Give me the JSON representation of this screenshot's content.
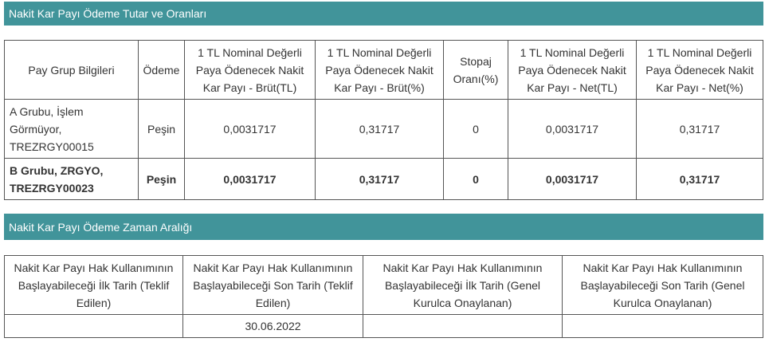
{
  "section1": {
    "title": "Nakit Kar Payı Ödeme Tutar ve Oranları",
    "headers": [
      "Pay Grup Bilgileri",
      "Ödeme",
      "1 TL Nominal Değerli Paya Ödenecek Nakit Kar Payı - Brüt(TL)",
      "1 TL Nominal Değerli Paya Ödenecek Nakit Kar Payı - Brüt(%)",
      "Stopaj Oranı(%)",
      "1 TL Nominal Değerli Paya Ödenecek Nakit Kar Payı - Net(TL)",
      "1 TL Nominal Değerli Paya Ödenecek Nakit Kar Payı - Net(%)"
    ],
    "rows": [
      [
        "A Grubu, İşlem Görmüyor, TREZRGY00015",
        "Peşin",
        "0,0031717",
        "0,31717",
        "0",
        "0,0031717",
        "0,31717"
      ],
      [
        "B Grubu, ZRGYO, TREZRGY00023",
        "Peşin",
        "0,0031717",
        "0,31717",
        "0",
        "0,0031717",
        "0,31717"
      ]
    ]
  },
  "section2": {
    "title": "Nakit Kar Payı Ödeme Zaman Aralığı",
    "headers": [
      "Nakit Kar Payı Hak Kullanımının Başlayabileceği İlk Tarih (Teklif Edilen)",
      "Nakit Kar Payı Hak Kullanımının Başlayabileceği Son Tarih (Teklif Edilen)",
      "Nakit Kar Payı Hak Kullanımının Başlayabileceği İlk Tarih (Genel Kurulca Onaylanan)",
      "Nakit Kar Payı Hak Kullanımının Başlayabileceği Son Tarih (Genel Kurulca Onaylanan)"
    ],
    "rows": [
      [
        "",
        "30.06.2022",
        "",
        ""
      ]
    ]
  }
}
